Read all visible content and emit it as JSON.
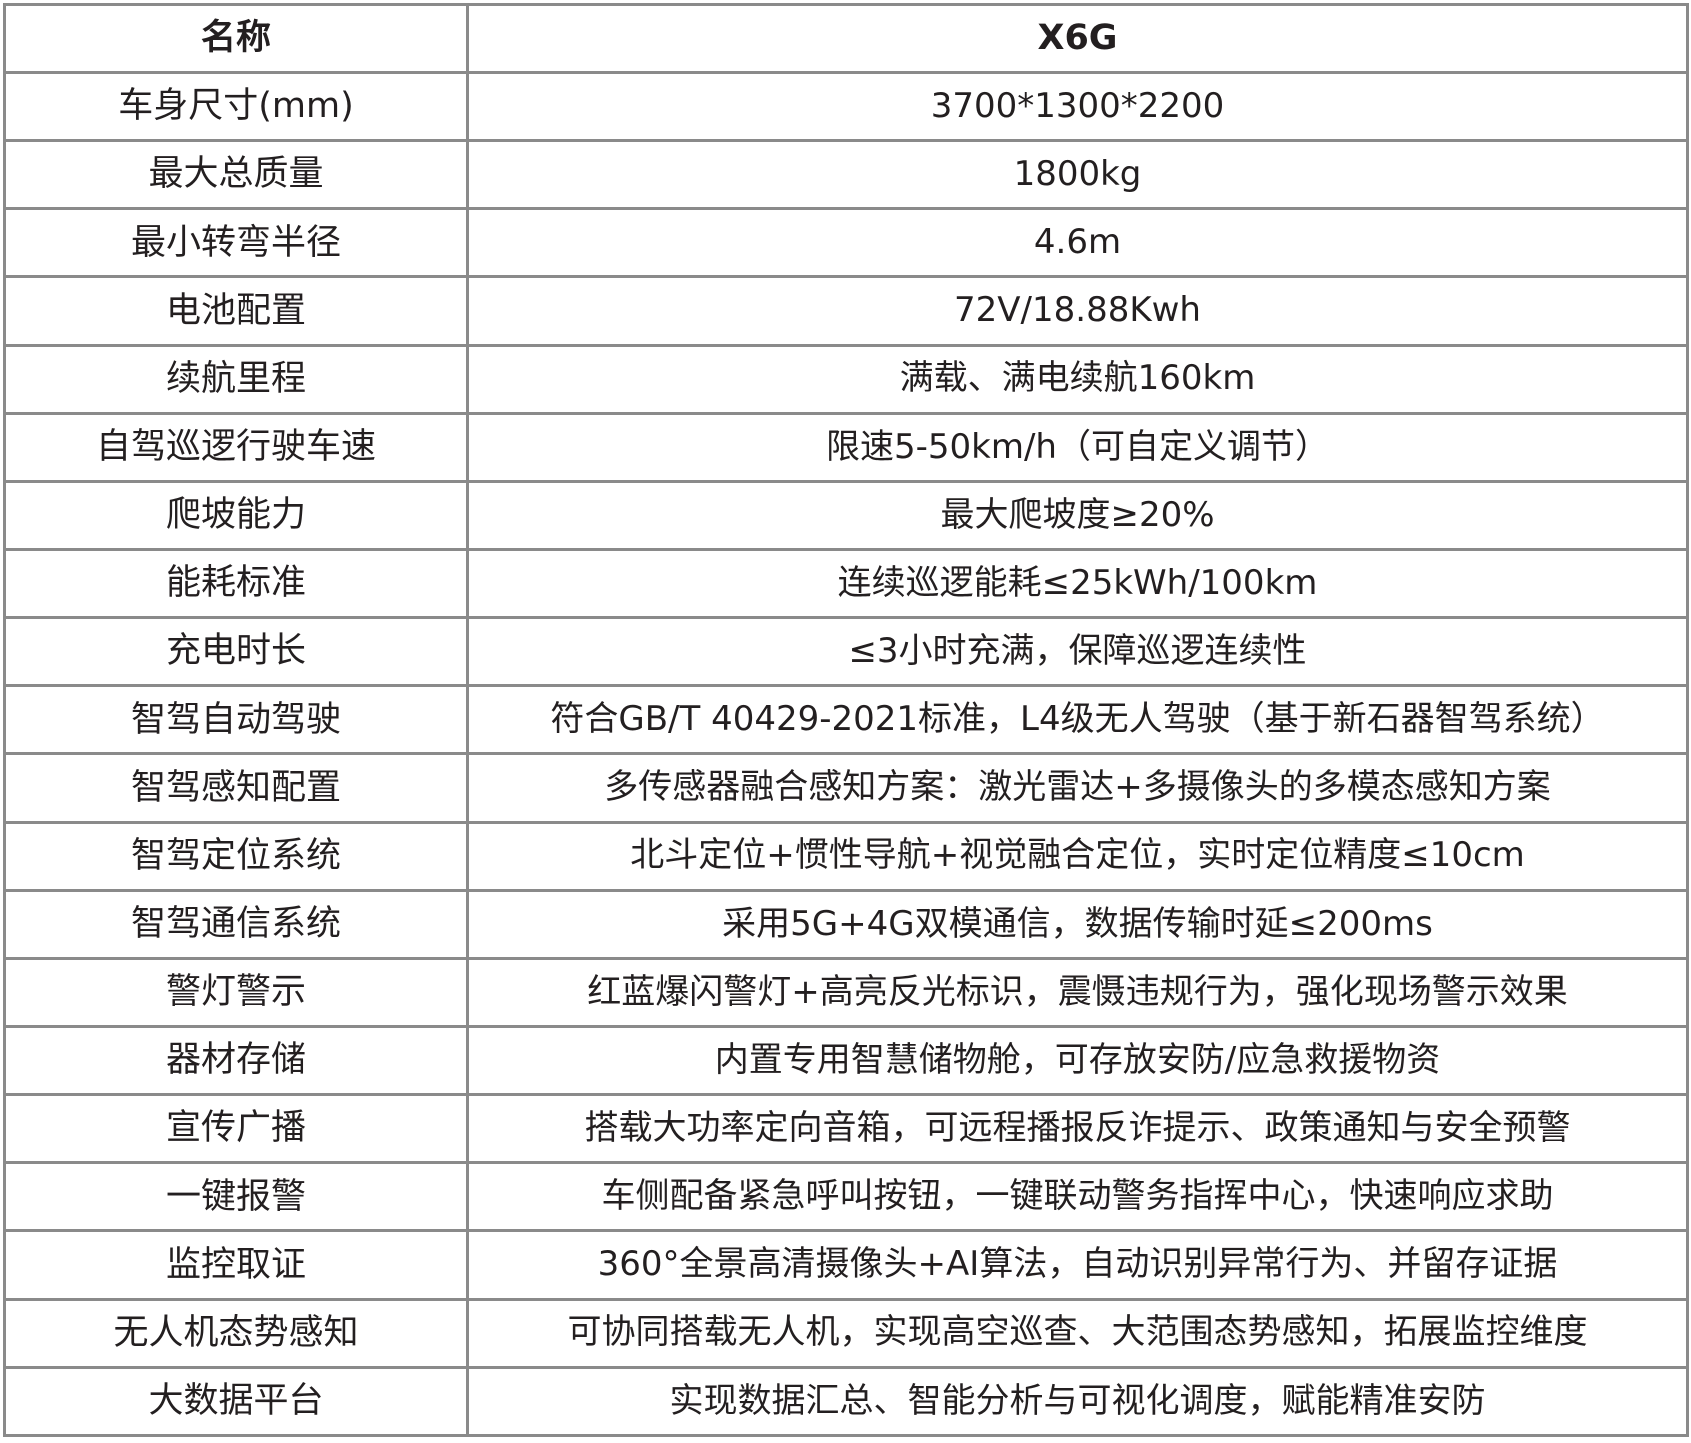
{
  "header": {
    "name": "名称",
    "value": "X6G"
  },
  "rows": [
    {
      "name": "车身尺寸(mm)",
      "value": "3700*1300*2200"
    },
    {
      "name": "最大总质量",
      "value": "1800kg"
    },
    {
      "name": "最小转弯半径",
      "value": "4.6m"
    },
    {
      "name": "电池配置",
      "value": "72V/18.88Kwh"
    },
    {
      "name": "续航里程",
      "value": "满载、满电续航160km"
    },
    {
      "name": "自驾巡逻行驶车速",
      "value": "限速5-50km/h（可自定义调节）"
    },
    {
      "name": "爬坡能力",
      "value": "最大爬坡度≥20%"
    },
    {
      "name": "能耗标准",
      "value": "连续巡逻能耗≤25kWh/100km"
    },
    {
      "name": "充电时长",
      "value": "≤3小时充满，保障巡逻连续性"
    },
    {
      "name": "智驾自动驾驶",
      "value": "符合GB/T 40429-2021标准，L4级无人驾驶（基于新石器智驾系统）"
    },
    {
      "name": "智驾感知配置",
      "value": "多传感器融合感知方案：激光雷达+多摄像头的多模态感知方案"
    },
    {
      "name": "智驾定位系统",
      "value": "北斗定位+惯性导航+视觉融合定位，实时定位精度≤10cm"
    },
    {
      "name": "智驾通信系统",
      "value": "采用5G+4G双模通信，数据传输时延≤200ms"
    },
    {
      "name": "警灯警示",
      "value": "红蓝爆闪警灯+高亮反光标识，震慑违规行为，强化现场警示效果"
    },
    {
      "name": "器材存储",
      "value": "内置专用智慧储物舱，可存放安防/应急救援物资"
    },
    {
      "name": "宣传广播",
      "value": "搭载大功率定向音箱，可远程播报反诈提示、政策通知与安全预警"
    },
    {
      "name": "一键报警",
      "value": "车侧配备紧急呼叫按钮，一键联动警务指挥中心，快速响应求助"
    },
    {
      "name": "监控取证",
      "value": "360°全景高清摄像头+AI算法，自动识别异常行为、并留存证据"
    },
    {
      "name": "无人机态势感知",
      "value": "可协同搭载无人机，实现高空巡查、大范围态势感知，拓展监控维度"
    },
    {
      "name": "大数据平台",
      "value": "实现数据汇总、智能分析与可视化调度，赋能精准安防"
    }
  ]
}
